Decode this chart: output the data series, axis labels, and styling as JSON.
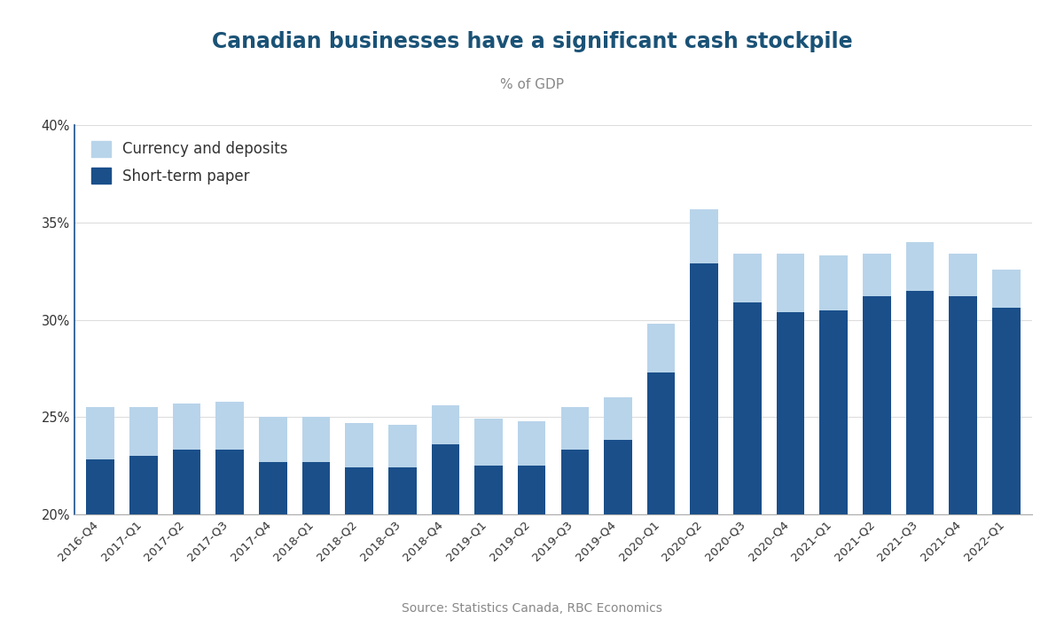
{
  "title": "Canadian businesses have a significant cash stockpile",
  "subtitle": "% of GDP",
  "source": "Source: Statistics Canada, RBC Economics",
  "categories": [
    "2016-Q4",
    "2017-Q1",
    "2017-Q2",
    "2017-Q3",
    "2017-Q4",
    "2018-Q1",
    "2018-Q2",
    "2018-Q3",
    "2018-Q4",
    "2019-Q1",
    "2019-Q2",
    "2019-Q3",
    "2019-Q4",
    "2020-Q1",
    "2020-Q2",
    "2020-Q3",
    "2020-Q4",
    "2021-Q1",
    "2021-Q2",
    "2021-Q3",
    "2021-Q4",
    "2022-Q1"
  ],
  "short_term_paper": [
    22.8,
    23.0,
    23.3,
    23.3,
    22.7,
    22.7,
    22.4,
    22.4,
    23.6,
    22.5,
    22.5,
    23.3,
    23.8,
    27.3,
    32.9,
    30.9,
    30.4,
    30.5,
    31.2,
    31.5,
    31.2,
    30.6
  ],
  "currency_deposits": [
    2.7,
    2.5,
    2.4,
    2.5,
    2.3,
    2.3,
    2.3,
    2.2,
    2.0,
    2.4,
    2.3,
    2.2,
    2.2,
    2.5,
    2.8,
    2.5,
    3.0,
    2.8,
    2.2,
    2.5,
    2.2,
    2.0
  ],
  "bar_color_dark": "#1a4f8a",
  "bar_color_light": "#b8d4ea",
  "background_color": "#ffffff",
  "ylim_min": 20,
  "ylim_max": 40,
  "yticks": [
    20,
    25,
    30,
    35,
    40
  ],
  "title_color": "#1a5276",
  "subtitle_color": "#888888",
  "source_color": "#888888"
}
